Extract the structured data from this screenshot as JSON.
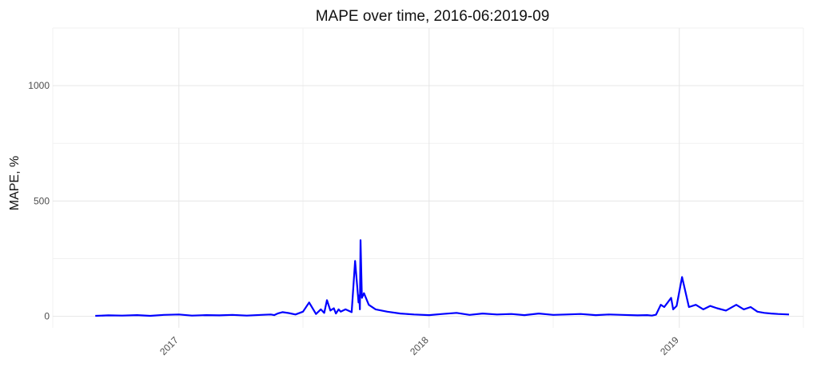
{
  "chart_data": {
    "type": "line",
    "title": "MAPE over time, 2016-06:2019-09",
    "xlabel": "",
    "ylabel": "MAPE, %",
    "x_ticks": [
      "2017",
      "2018",
      "2019"
    ],
    "y_ticks": [
      "0",
      "500",
      "1000"
    ],
    "ylim": [
      -50,
      1250
    ],
    "xlim": [
      "2016-07-01",
      "2019-07-01"
    ],
    "grid": true,
    "line_color": "#0000ff",
    "series": [
      {
        "x": [
          "2016-09-01",
          "2016-09-20",
          "2016-10-10",
          "2016-11-01",
          "2016-11-20",
          "2016-12-10",
          "2017-01-01",
          "2017-01-20",
          "2017-02-10",
          "2017-03-01",
          "2017-03-20",
          "2017-04-10",
          "2017-05-01",
          "2017-05-15",
          "2017-05-20",
          "2017-05-25",
          "2017-06-01",
          "2017-06-10",
          "2017-06-20",
          "2017-07-01",
          "2017-07-10",
          "2017-07-20",
          "2017-07-27",
          "2017-08-01",
          "2017-08-05",
          "2017-08-10",
          "2017-08-15",
          "2017-08-18",
          "2017-08-22",
          "2017-08-25",
          "2017-09-01",
          "2017-09-10",
          "2017-09-15",
          "2017-09-20",
          "2017-09-21",
          "2017-09-22",
          "2017-09-23",
          "2017-09-25",
          "2017-09-28",
          "2017-10-05",
          "2017-10-15",
          "2017-11-01",
          "2017-11-20",
          "2017-12-10",
          "2018-01-01",
          "2018-01-20",
          "2018-02-10",
          "2018-03-01",
          "2018-03-20",
          "2018-04-10",
          "2018-05-01",
          "2018-05-20",
          "2018-06-10",
          "2018-07-01",
          "2018-07-20",
          "2018-08-10",
          "2018-09-01",
          "2018-09-20",
          "2018-10-10",
          "2018-11-01",
          "2018-11-15",
          "2018-11-22",
          "2018-11-28",
          "2018-12-05",
          "2018-12-10",
          "2018-12-15",
          "2018-12-20",
          "2018-12-23",
          "2018-12-28",
          "2019-01-05",
          "2019-01-15",
          "2019-01-25",
          "2019-02-05",
          "2019-02-15",
          "2019-02-25",
          "2019-03-10",
          "2019-03-25",
          "2019-04-05",
          "2019-04-15",
          "2019-04-25",
          "2019-05-05",
          "2019-05-15",
          "2019-05-25",
          "2019-06-10"
        ],
        "y": [
          2,
          4,
          3,
          5,
          2,
          6,
          8,
          3,
          5,
          4,
          6,
          3,
          6,
          8,
          5,
          12,
          18,
          14,
          8,
          20,
          60,
          10,
          30,
          15,
          70,
          25,
          35,
          12,
          30,
          20,
          30,
          18,
          240,
          60,
          90,
          30,
          330,
          80,
          100,
          50,
          30,
          20,
          12,
          8,
          5,
          10,
          15,
          6,
          12,
          8,
          10,
          5,
          12,
          6,
          8,
          10,
          5,
          8,
          6,
          4,
          5,
          3,
          7,
          50,
          40,
          60,
          80,
          30,
          45,
          170,
          40,
          50,
          30,
          45,
          35,
          25,
          50,
          30,
          40,
          20,
          15,
          12,
          10,
          8
        ]
      }
    ]
  }
}
